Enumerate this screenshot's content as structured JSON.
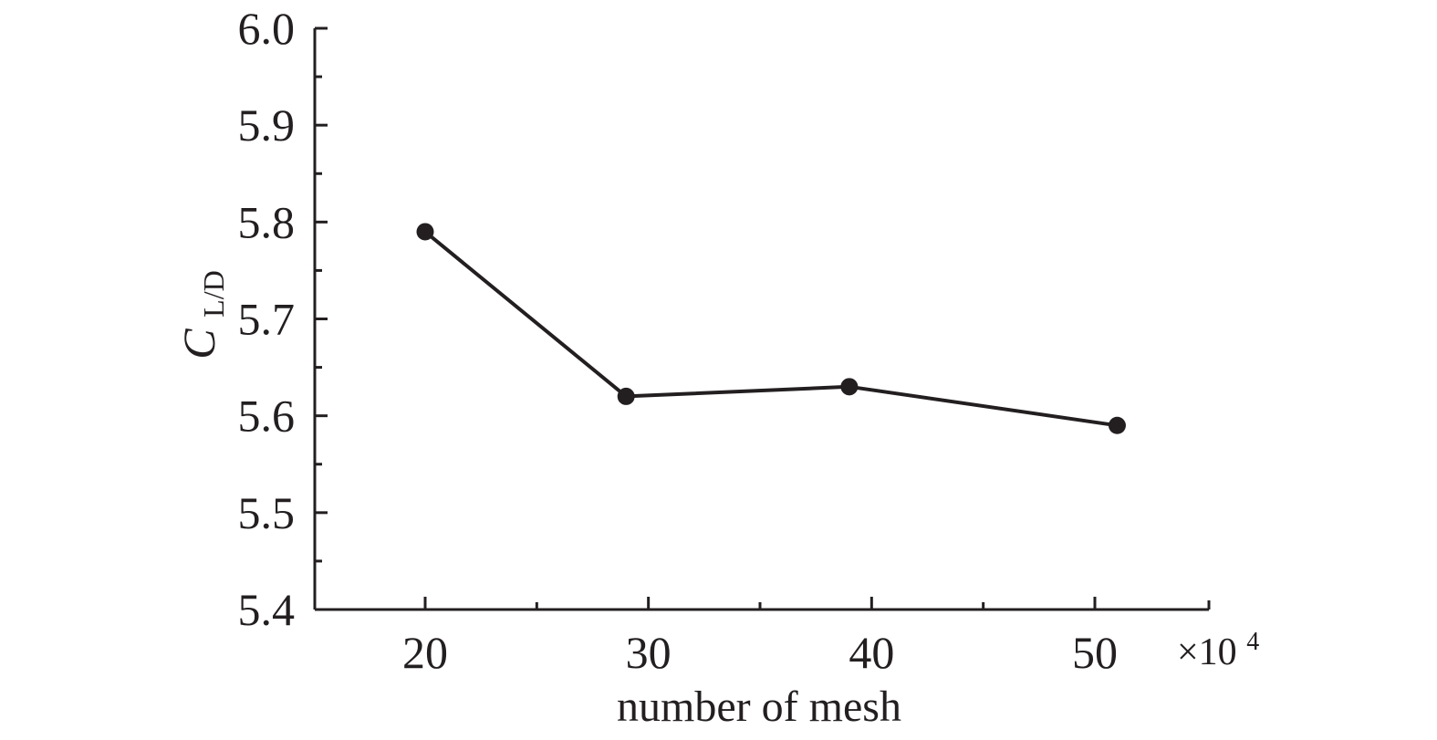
{
  "chart_data": {
    "type": "line",
    "x": [
      20,
      29,
      39,
      51
    ],
    "series": [
      {
        "values": [
          5.79,
          5.62,
          5.63,
          5.59
        ]
      }
    ],
    "xlabel": "number of mesh",
    "ylabel_main": "C",
    "ylabel_sub": "L/D",
    "x_multiplier_base": "×10",
    "x_multiplier_exp": "4",
    "xlim": [
      15,
      55
    ],
    "ylim": [
      5.4,
      6.0
    ],
    "x_ticks": [
      20,
      30,
      40,
      50
    ],
    "x_tick_labels": [
      "20",
      "30",
      "40",
      "50"
    ],
    "y_ticks": [
      5.4,
      5.5,
      5.6,
      5.7,
      5.8,
      5.9,
      6.0
    ],
    "y_tick_labels": [
      "5.4",
      "5.5",
      "5.6",
      "5.7",
      "5.8",
      "5.9",
      "6.0"
    ],
    "grid": false,
    "colors": {
      "line": "#231f20",
      "marker": "#231f20",
      "axis": "#231f20"
    }
  }
}
